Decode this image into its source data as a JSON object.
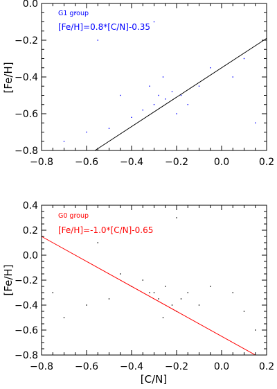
{
  "chart_data": [
    {
      "type": "scatter",
      "xlim": [
        -0.8,
        0.2
      ],
      "ylim": [
        -0.8,
        0.0
      ],
      "xticks": [
        "−0.8",
        "−0.6",
        "−0.4",
        "−0.2",
        "0.0",
        "0.2"
      ],
      "xtick_values": [
        -0.8,
        -0.6,
        -0.4,
        -0.2,
        0.0,
        0.2
      ],
      "yticks": [
        "−0.8",
        "−0.6",
        "−0.4",
        "−0.2",
        "0.0"
      ],
      "ytick_values": [
        -0.8,
        -0.6,
        -0.4,
        -0.2,
        0.0
      ],
      "xlabel": "",
      "ylabel": "[Fe/H]",
      "grid": false,
      "annotations": [
        "G1 group",
        "[Fe/H]=0.8*[C/N]-0.35"
      ],
      "fit_line": {
        "slope": 0.8,
        "intercept": -0.35
      },
      "point_color": "#0000ff",
      "line_color": "#000000",
      "points": [
        [
          -0.3,
          -0.55
        ],
        [
          -0.28,
          -0.5
        ],
        [
          -0.25,
          -0.52
        ],
        [
          -0.22,
          -0.48
        ],
        [
          -0.35,
          -0.58
        ],
        [
          -0.2,
          -0.6
        ],
        [
          -0.32,
          -0.45
        ],
        [
          -0.18,
          -0.5
        ],
        [
          -0.4,
          -0.62
        ],
        [
          -0.26,
          -0.4
        ],
        [
          -0.15,
          -0.55
        ],
        [
          -0.45,
          -0.5
        ],
        [
          -0.1,
          -0.45
        ],
        [
          -0.5,
          -0.68
        ],
        [
          -0.05,
          -0.35
        ],
        [
          -0.6,
          -0.7
        ],
        [
          0.05,
          -0.4
        ],
        [
          -0.7,
          -0.75
        ],
        [
          0.1,
          -0.3
        ],
        [
          -0.55,
          -0.2
        ],
        [
          -0.3,
          -0.1
        ],
        [
          0.15,
          -0.65
        ],
        [
          -0.65,
          -0.05
        ]
      ]
    },
    {
      "type": "scatter",
      "xlim": [
        -0.8,
        0.2
      ],
      "ylim": [
        -0.8,
        0.4
      ],
      "xticks": [
        "−0.8",
        "−0.6",
        "−0.4",
        "−0.2",
        "0.0",
        "0.2"
      ],
      "xtick_values": [
        -0.8,
        -0.6,
        -0.4,
        -0.2,
        0.0,
        0.2
      ],
      "yticks": [
        "−0.8",
        "−0.6",
        "−0.4",
        "−0.2",
        "0.0",
        "0.2",
        "0.4"
      ],
      "ytick_values": [
        -0.8,
        -0.6,
        -0.4,
        -0.2,
        0.0,
        0.2,
        0.4
      ],
      "xlabel": "[C/N]",
      "ylabel": "[Fe/H]",
      "grid": false,
      "annotations": [
        "G0 group",
        "[Fe/H]=-1.0*[C/N]-0.65"
      ],
      "fit_line": {
        "slope": -1.0,
        "intercept": -0.65
      },
      "point_color": "#000000",
      "line_color": "#ff0000",
      "points": [
        [
          -0.3,
          -0.3
        ],
        [
          -0.28,
          -0.35
        ],
        [
          -0.25,
          -0.25
        ],
        [
          -0.22,
          -0.4
        ],
        [
          -0.35,
          -0.2
        ],
        [
          -0.2,
          -0.45
        ],
        [
          -0.32,
          -0.3
        ],
        [
          -0.18,
          -0.35
        ],
        [
          -0.4,
          -0.25
        ],
        [
          -0.26,
          -0.5
        ],
        [
          -0.15,
          -0.3
        ],
        [
          -0.45,
          -0.15
        ],
        [
          -0.1,
          -0.4
        ],
        [
          -0.5,
          -0.35
        ],
        [
          -0.05,
          -0.25
        ],
        [
          -0.6,
          -0.4
        ],
        [
          0.05,
          -0.3
        ],
        [
          -0.7,
          -0.5
        ],
        [
          0.1,
          -0.45
        ],
        [
          -0.55,
          0.1
        ],
        [
          -0.2,
          0.3
        ],
        [
          0.15,
          -0.6
        ],
        [
          -0.75,
          -0.3
        ]
      ]
    }
  ]
}
